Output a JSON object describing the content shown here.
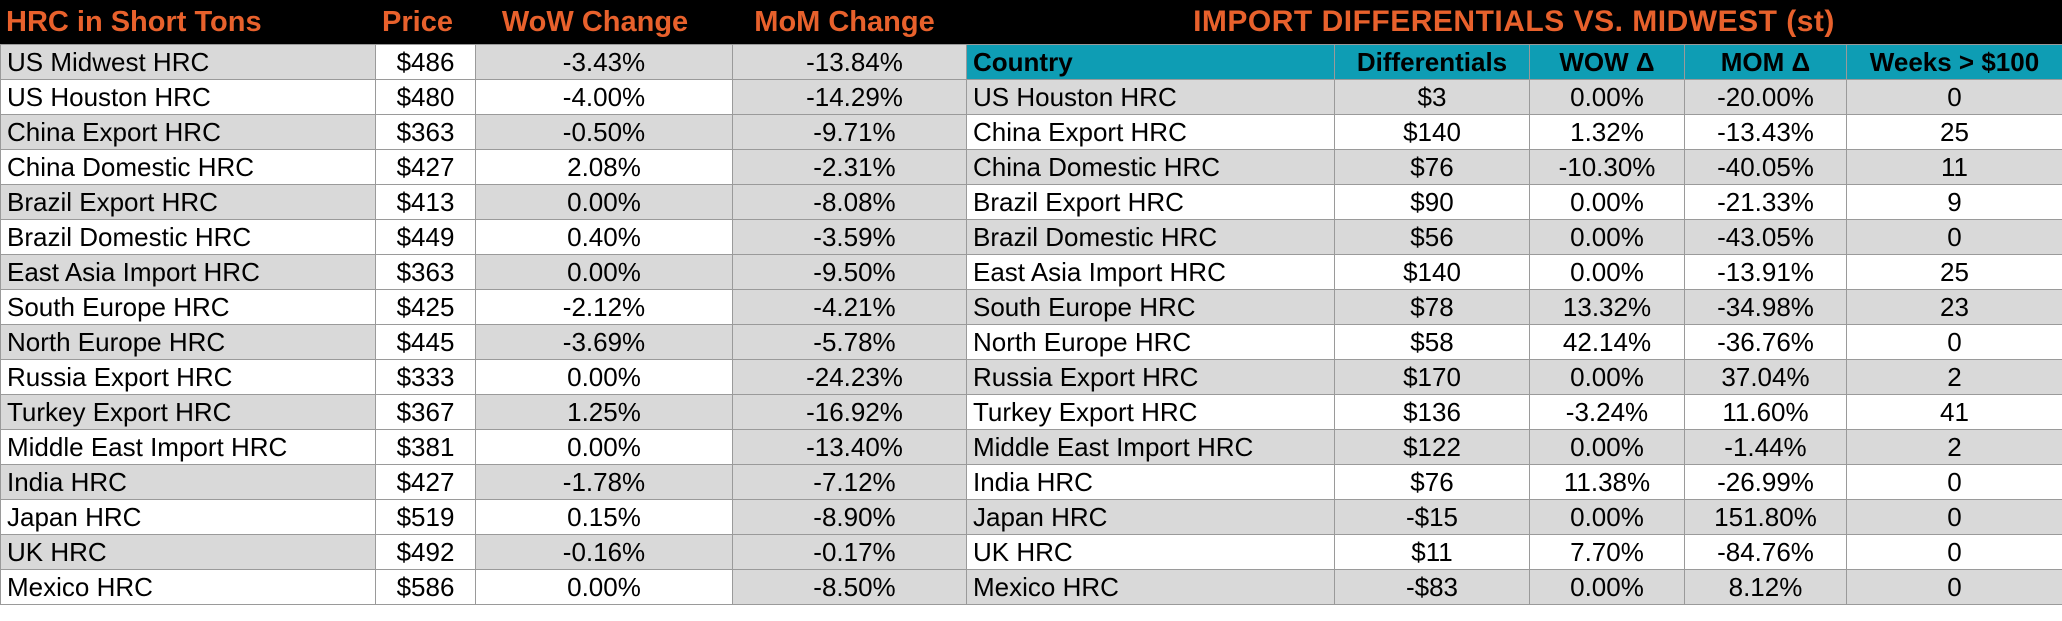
{
  "left": {
    "headers": {
      "name": "HRC in Short Tons",
      "price": "Price",
      "wow": "WoW Change",
      "mom": "MoM Change"
    },
    "rows": [
      {
        "name": "US Midwest HRC",
        "price": "$486",
        "wow": "-3.43%",
        "mom": "-13.84%"
      },
      {
        "name": "US Houston HRC",
        "price": "$480",
        "wow": "-4.00%",
        "mom": "-14.29%"
      },
      {
        "name": "China Export HRC",
        "price": "$363",
        "wow": "-0.50%",
        "mom": "-9.71%"
      },
      {
        "name": "China Domestic HRC",
        "price": "$427",
        "wow": "2.08%",
        "mom": "-2.31%"
      },
      {
        "name": "Brazil Export HRC",
        "price": "$413",
        "wow": "0.00%",
        "mom": "-8.08%"
      },
      {
        "name": "Brazil Domestic HRC",
        "price": "$449",
        "wow": "0.40%",
        "mom": "-3.59%"
      },
      {
        "name": "East Asia Import HRC",
        "price": "$363",
        "wow": "0.00%",
        "mom": "-9.50%"
      },
      {
        "name": "South Europe HRC",
        "price": "$425",
        "wow": "-2.12%",
        "mom": "-4.21%"
      },
      {
        "name": "North Europe HRC",
        "price": "$445",
        "wow": "-3.69%",
        "mom": "-5.78%"
      },
      {
        "name": "Russia Export HRC",
        "price": "$333",
        "wow": "0.00%",
        "mom": "-24.23%"
      },
      {
        "name": "Turkey Export HRC",
        "price": "$367",
        "wow": "1.25%",
        "mom": "-16.92%"
      },
      {
        "name": "Middle East Import HRC",
        "price": "$381",
        "wow": "0.00%",
        "mom": "-13.40%"
      },
      {
        "name": "India HRC",
        "price": "$427",
        "wow": "-1.78%",
        "mom": "-7.12%"
      },
      {
        "name": "Japan HRC",
        "price": "$519",
        "wow": "0.15%",
        "mom": "-8.90%"
      },
      {
        "name": "UK HRC",
        "price": "$492",
        "wow": "-0.16%",
        "mom": "-0.17%"
      },
      {
        "name": "Mexico HRC",
        "price": "$586",
        "wow": "0.00%",
        "mom": "-8.50%"
      }
    ]
  },
  "right": {
    "title": "IMPORT DIFFERENTIALS VS. MIDWEST (st)",
    "headers": {
      "country": "Country",
      "diff": "Differentials",
      "wow": "WOW Δ",
      "mom": "MOM Δ",
      "weeks": "Weeks > $100"
    },
    "rows": [
      {
        "country": "US Houston HRC",
        "diff": "$3",
        "wow": "0.00%",
        "mom": "-20.00%",
        "weeks": "0"
      },
      {
        "country": "China Export HRC",
        "diff": "$140",
        "wow": "1.32%",
        "mom": "-13.43%",
        "weeks": "25"
      },
      {
        "country": "China Domestic HRC",
        "diff": "$76",
        "wow": "-10.30%",
        "mom": "-40.05%",
        "weeks": "11"
      },
      {
        "country": "Brazil Export HRC",
        "diff": "$90",
        "wow": "0.00%",
        "mom": "-21.33%",
        "weeks": "9"
      },
      {
        "country": "Brazil Domestic HRC",
        "diff": "$56",
        "wow": "0.00%",
        "mom": "-43.05%",
        "weeks": "0"
      },
      {
        "country": "East Asia Import HRC",
        "diff": "$140",
        "wow": "0.00%",
        "mom": "-13.91%",
        "weeks": "25"
      },
      {
        "country": "South Europe HRC",
        "diff": "$78",
        "wow": "13.32%",
        "mom": "-34.98%",
        "weeks": "23"
      },
      {
        "country": "North Europe HRC",
        "diff": "$58",
        "wow": "42.14%",
        "mom": "-36.76%",
        "weeks": "0"
      },
      {
        "country": "Russia Export HRC",
        "diff": "$170",
        "wow": "0.00%",
        "mom": "37.04%",
        "weeks": "2"
      },
      {
        "country": "Turkey Export HRC",
        "diff": "$136",
        "wow": "-3.24%",
        "mom": "11.60%",
        "weeks": "41"
      },
      {
        "country": "Middle East Import HRC",
        "diff": "$122",
        "wow": "0.00%",
        "mom": "-1.44%",
        "weeks": "2"
      },
      {
        "country": "India HRC",
        "diff": "$76",
        "wow": "11.38%",
        "mom": "-26.99%",
        "weeks": "0"
      },
      {
        "country": "Japan HRC",
        "diff": "-$15",
        "wow": "0.00%",
        "mom": "151.80%",
        "weeks": "0"
      },
      {
        "country": "UK HRC",
        "diff": "$11",
        "wow": "7.70%",
        "mom": "-84.76%",
        "weeks": "0"
      },
      {
        "country": "Mexico HRC",
        "diff": "-$83",
        "wow": "0.00%",
        "mom": "8.12%",
        "weeks": "0"
      }
    ]
  },
  "colors": {
    "header_bg": "#000000",
    "header_text": "#E8612C",
    "teal_header": "#0e9db4",
    "row_shade": "#d9d9d9"
  }
}
